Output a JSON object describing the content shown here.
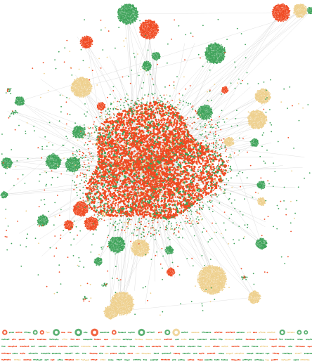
{
  "colors": {
    "red": "#f04a22",
    "green": "#3fa35a",
    "yellow": "#eed08e",
    "edge": "#c9c9c9",
    "background": "#ffffff"
  },
  "groups": {
    "red": {
      "color_key": "red"
    },
    "green": {
      "color_key": "green"
    },
    "yellow": {
      "color_key": "yellow"
    }
  }
}
